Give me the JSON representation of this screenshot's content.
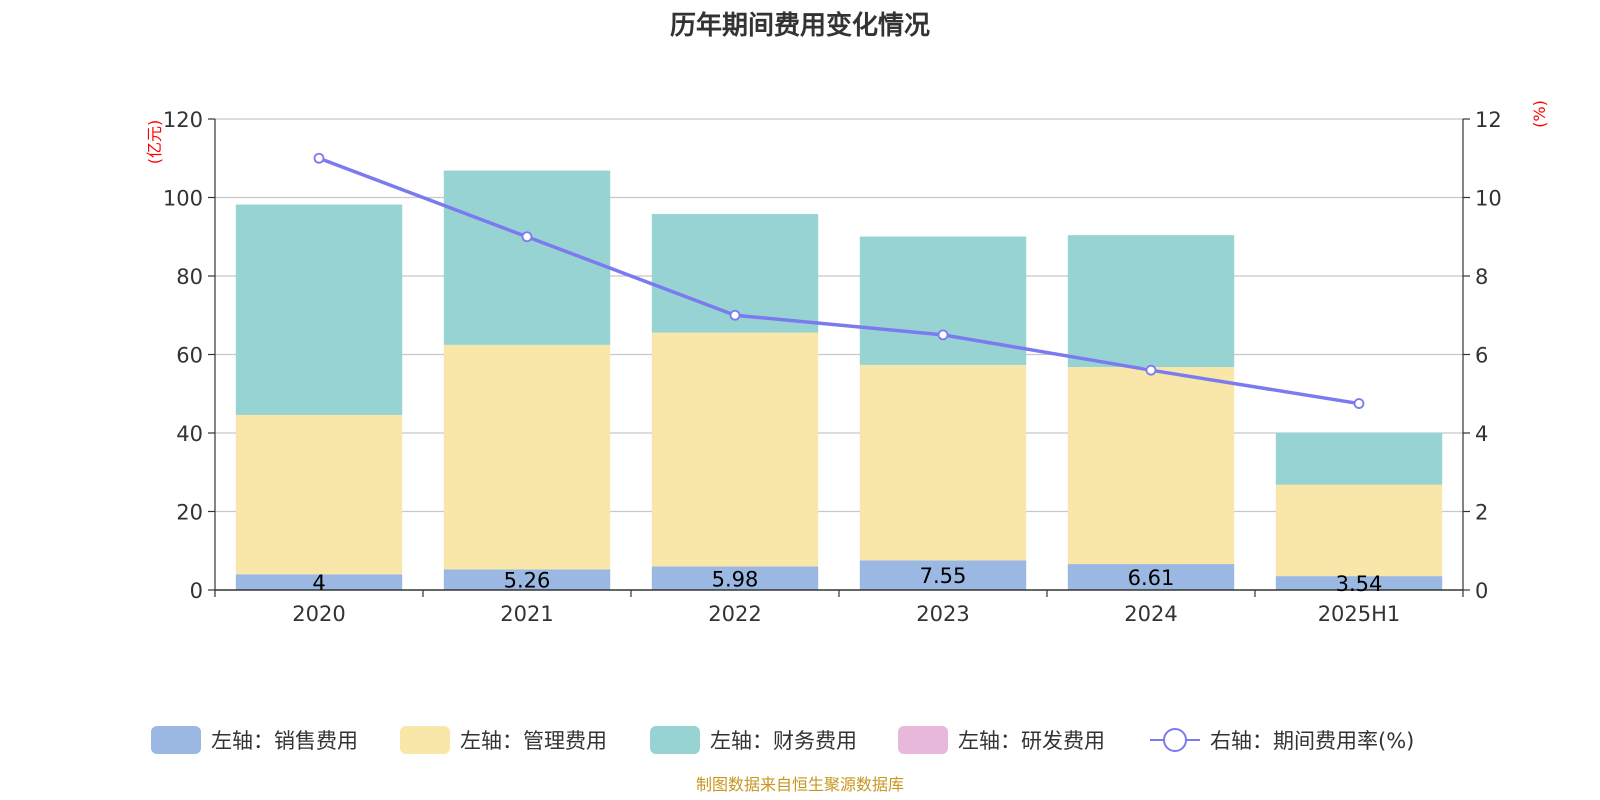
{
  "colors": {
    "sales": "#9bb8e3",
    "admin": "#f8e7a8",
    "finance": "#98d3d4",
    "rnd": "#e8b8db",
    "rate": "#7b7bef",
    "unit": "#ff0000",
    "source": "#c8961e"
  },
  "chart_data": {
    "type": "bar",
    "stacked": true,
    "title": "历年期间费用变化情况",
    "categories": [
      "2020",
      "2021",
      "2022",
      "2023",
      "2024",
      "2025H1"
    ],
    "y_left": {
      "unit_label": "(亿元)",
      "min": 0,
      "max": 120,
      "ticks": [
        "0",
        "20",
        "40",
        "60",
        "80",
        "100",
        "120"
      ]
    },
    "y_right": {
      "unit_label": "(%)",
      "min": 0,
      "max": 12,
      "ticks": [
        "0",
        "2",
        "4",
        "6",
        "8",
        "10",
        "12"
      ]
    },
    "grid": true,
    "legend_position": "bottom",
    "series": [
      {
        "key": "sales",
        "name": "左轴：销售费用",
        "axis": "left",
        "type": "bar",
        "values": [
          4,
          5.26,
          5.98,
          7.55,
          6.61,
          3.54
        ],
        "labels": [
          "4",
          "5.26",
          "5.98",
          "7.55",
          "6.61",
          "3.54"
        ]
      },
      {
        "key": "admin",
        "name": "左轴：管理费用",
        "axis": "left",
        "type": "bar",
        "values": [
          40.6,
          57.2,
          59.6,
          49.8,
          50.2,
          23.3
        ]
      },
      {
        "key": "finance",
        "name": "左轴：财务费用",
        "axis": "left",
        "type": "bar",
        "values": [
          53.6,
          44.4,
          30.2,
          32.7,
          33.6,
          13.2
        ]
      },
      {
        "key": "rnd",
        "name": "左轴：研发费用",
        "axis": "left",
        "type": "bar",
        "values": [
          0,
          0,
          0,
          0,
          0,
          0
        ]
      },
      {
        "key": "rate",
        "name": "右轴：期间费用率(%)",
        "axis": "right",
        "type": "line",
        "values": [
          11.0,
          9.0,
          7.0,
          6.5,
          5.6,
          4.75
        ]
      }
    ],
    "source": "制图数据来自恒生聚源数据库"
  }
}
